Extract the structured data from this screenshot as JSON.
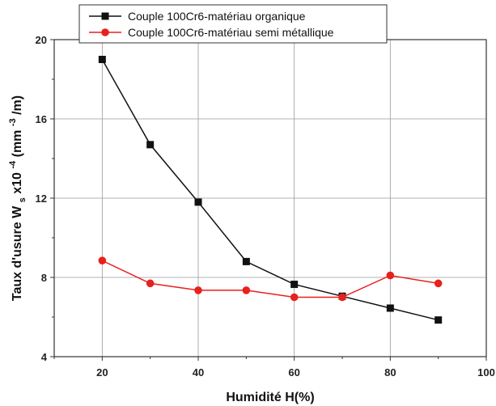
{
  "chart_data": {
    "type": "line",
    "x": [
      20,
      30,
      40,
      50,
      60,
      70,
      80,
      90
    ],
    "series": [
      {
        "name": "Couple 100Cr6-matériau organique",
        "color": "#111111",
        "marker": "square",
        "values": [
          19.0,
          14.7,
          11.8,
          8.8,
          7.65,
          7.05,
          6.45,
          5.85
        ]
      },
      {
        "name": "Couple 100Cr6-matériau semi métallique",
        "color": "#e8211c",
        "marker": "circle",
        "values": [
          8.85,
          7.7,
          7.35,
          7.35,
          7.0,
          7.0,
          8.1,
          7.7
        ]
      }
    ],
    "xlabel": "Humidité H(%)",
    "ylabel_parts": {
      "prefix": "Taux d'usure W",
      "subscript": "s",
      "middle": " x10",
      "superscript": "-4",
      "after_sup": "(mm",
      "superscript2": "-3",
      "suffix": "/m)"
    },
    "xlim": [
      10,
      100
    ],
    "ylim": [
      4,
      20
    ],
    "xticks": [
      20,
      40,
      60,
      80,
      100
    ],
    "yticks": [
      4,
      8,
      12,
      16,
      20
    ],
    "grid": true,
    "legend_position": "top"
  }
}
